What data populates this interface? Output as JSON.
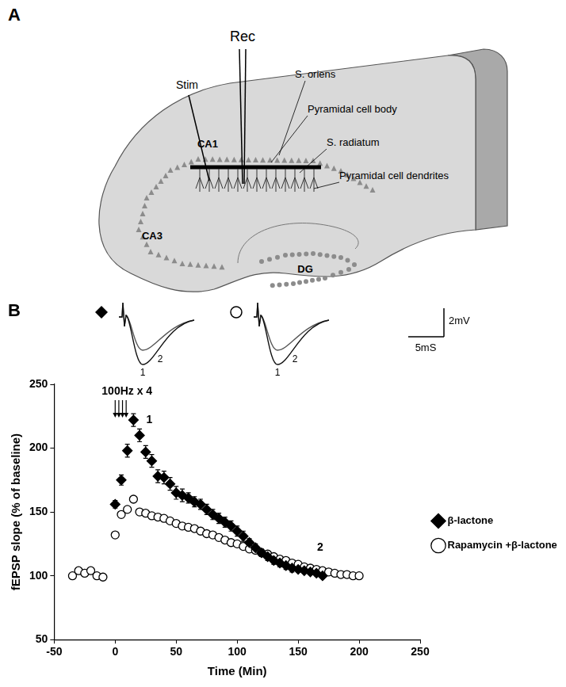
{
  "diagram": {
    "panel_label": "A",
    "recording": "Rec",
    "stimulation": "Stim",
    "regions": [
      "CA1",
      "CA3",
      "DG"
    ],
    "layers": [
      "S. oriens",
      "Pyramidal cell body",
      "S. radiatum",
      "Pyramidal cell dendrites"
    ]
  },
  "chart_data": {
    "type": "scatter",
    "panel_label": "B",
    "x_label": "Time (Min)",
    "y_label": "fEPSP slope (% of baseline)",
    "xlim": [
      -50,
      250
    ],
    "xticks": [
      -50,
      0,
      50,
      100,
      150,
      200,
      250
    ],
    "ylim": [
      50,
      250
    ],
    "yticks": [
      50,
      100,
      150,
      200,
      250
    ],
    "grid": false,
    "legend": "right",
    "series": [
      {
        "name": "β-lactone",
        "color": "#000000",
        "marker": "diamond",
        "line_style": "none",
        "x": [
          0,
          5,
          10,
          15,
          20,
          25,
          30,
          35,
          40,
          45,
          50,
          55,
          60,
          65,
          70,
          75,
          80,
          85,
          90,
          95,
          100,
          105,
          110,
          115,
          120,
          125,
          130,
          135,
          140,
          145,
          150,
          155,
          160,
          165,
          170
        ],
        "values": [
          156,
          175,
          198,
          222,
          210,
          197,
          190,
          178,
          177,
          172,
          165,
          163,
          161,
          158,
          156,
          152,
          148,
          145,
          142,
          139,
          135,
          131,
          126,
          122,
          118,
          115,
          112,
          110,
          108,
          106,
          105,
          104,
          103,
          102,
          100
        ],
        "errors": [
          3,
          4,
          5,
          5,
          5,
          5,
          5,
          5,
          5,
          5,
          5,
          5,
          4,
          4,
          4,
          4,
          4,
          4,
          4,
          4,
          4,
          4,
          3,
          3,
          3,
          3,
          3,
          3,
          3,
          3,
          2,
          2,
          2,
          2,
          2
        ]
      },
      {
        "name": "Rapamycin +β-lactone",
        "color": "#000000",
        "marker": "open circle",
        "line_style": "none",
        "x": [
          -35,
          -30,
          -25,
          -20,
          -15,
          -10,
          0,
          5,
          10,
          15,
          20,
          25,
          30,
          35,
          40,
          45,
          50,
          55,
          60,
          65,
          70,
          75,
          80,
          85,
          90,
          95,
          100,
          105,
          110,
          115,
          120,
          125,
          130,
          135,
          140,
          145,
          150,
          155,
          160,
          165,
          170,
          175,
          180,
          185,
          190,
          195,
          200
        ],
        "values": [
          100,
          104,
          102,
          104,
          100,
          99,
          132,
          148,
          152,
          160,
          150,
          149,
          147,
          146,
          145,
          143,
          141,
          139,
          138,
          137,
          135,
          133,
          132,
          130,
          128,
          126,
          125,
          123,
          121,
          120,
          118,
          117,
          115,
          113,
          112,
          110,
          109,
          107,
          106,
          105,
          104,
          103,
          102,
          101,
          101,
          100,
          100
        ]
      }
    ],
    "stimulation": {
      "text": "100Hz x 4",
      "times": [
        0,
        3,
        6,
        9
      ]
    },
    "annotations": [
      {
        "text": "1",
        "x": 28,
        "y": 222
      },
      {
        "text": "2",
        "x": 168,
        "y": 122
      }
    ],
    "insets": [
      {
        "marker": "diamond",
        "trace_labels": [
          "1",
          "2"
        ]
      },
      {
        "marker": "open circle",
        "trace_labels": [
          "1",
          "2"
        ]
      }
    ],
    "scale_bar": {
      "y_label": "2mV",
      "x_label": "5mS"
    }
  }
}
